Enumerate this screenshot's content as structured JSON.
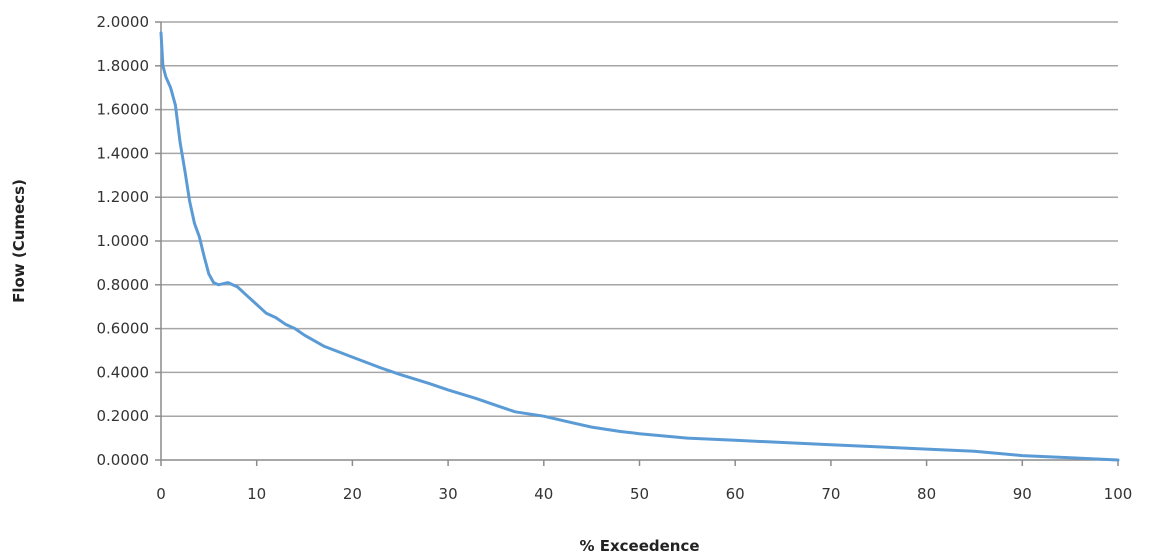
{
  "chart_data": {
    "type": "line",
    "title": "",
    "xlabel": "% Exceedence",
    "ylabel": "Flow (Cumecs)",
    "xlim": [
      0,
      100
    ],
    "ylim": [
      0,
      2
    ],
    "x_ticks": [
      0,
      10,
      20,
      30,
      40,
      50,
      60,
      70,
      80,
      90,
      100
    ],
    "x_tick_labels": [
      "0",
      "10",
      "20",
      "30",
      "40",
      "50",
      "60",
      "70",
      "80",
      "90",
      "100"
    ],
    "y_ticks": [
      0,
      0.2,
      0.4,
      0.6,
      0.8,
      1.0,
      1.2,
      1.4,
      1.6,
      1.8,
      2.0
    ],
    "y_tick_labels": [
      "0.0000",
      "0.2000",
      "0.4000",
      "0.6000",
      "0.8000",
      "1.0000",
      "1.2000",
      "1.4000",
      "1.6000",
      "1.8000",
      "2.0000"
    ],
    "grid": "horizontal",
    "legend": "none",
    "line_color": "#5b9bd5",
    "series": [
      {
        "x": [
          0,
          0.2,
          0.5,
          1,
          1.5,
          2,
          2.5,
          3,
          3.5,
          4,
          4.5,
          5,
          5.5,
          6,
          7,
          8,
          9,
          10,
          11,
          12,
          13,
          14,
          15,
          17,
          20,
          23,
          25,
          28,
          30,
          33,
          35,
          37,
          40,
          43,
          45,
          48,
          50,
          55,
          60,
          65,
          70,
          75,
          80,
          85,
          90,
          95,
          100
        ],
        "y": [
          1.95,
          1.8,
          1.75,
          1.7,
          1.62,
          1.45,
          1.32,
          1.18,
          1.08,
          1.02,
          0.93,
          0.85,
          0.81,
          0.8,
          0.81,
          0.79,
          0.75,
          0.71,
          0.67,
          0.65,
          0.62,
          0.6,
          0.57,
          0.52,
          0.47,
          0.42,
          0.39,
          0.35,
          0.32,
          0.28,
          0.25,
          0.22,
          0.2,
          0.17,
          0.15,
          0.13,
          0.12,
          0.1,
          0.09,
          0.08,
          0.07,
          0.06,
          0.05,
          0.04,
          0.02,
          0.01,
          0.0
        ]
      }
    ]
  }
}
